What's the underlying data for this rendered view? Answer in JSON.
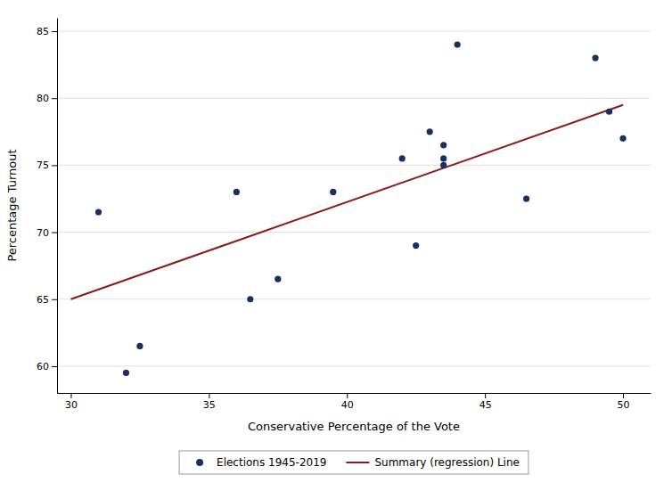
{
  "chart_data": {
    "type": "scatter",
    "xlabel": "Conservative Percentage of the Vote",
    "ylabel": "Percentage Turnout",
    "series": [
      {
        "name": "Elections 1945-2019",
        "type": "scatter",
        "marker": "circle",
        "color": "#1a3060",
        "x": [
          31.0,
          32.0,
          32.5,
          36.0,
          36.5,
          37.5,
          39.5,
          42.0,
          42.5,
          43.0,
          43.5,
          43.5,
          43.5,
          44.0,
          46.5,
          49.0,
          49.5,
          50.0
        ],
        "values": [
          71.5,
          59.5,
          61.5,
          73.0,
          65.0,
          66.5,
          73.0,
          75.5,
          69.0,
          77.5,
          75.0,
          75.5,
          76.5,
          84.0,
          72.5,
          83.0,
          79.0,
          77.0
        ]
      },
      {
        "name": "Summary (regression) Line",
        "type": "line",
        "line_style": "solid",
        "color": "#8b1a1a",
        "x": [
          30.0,
          50.0
        ],
        "values": [
          65.0,
          79.5
        ]
      }
    ],
    "xlim": [
      29.5,
      51.0
    ],
    "ylim": [
      58,
      86
    ],
    "xticks": [
      30,
      35,
      40,
      45,
      50
    ],
    "yticks": [
      60,
      65,
      70,
      75,
      80,
      85
    ],
    "grid": "y",
    "legend": "bottom"
  }
}
